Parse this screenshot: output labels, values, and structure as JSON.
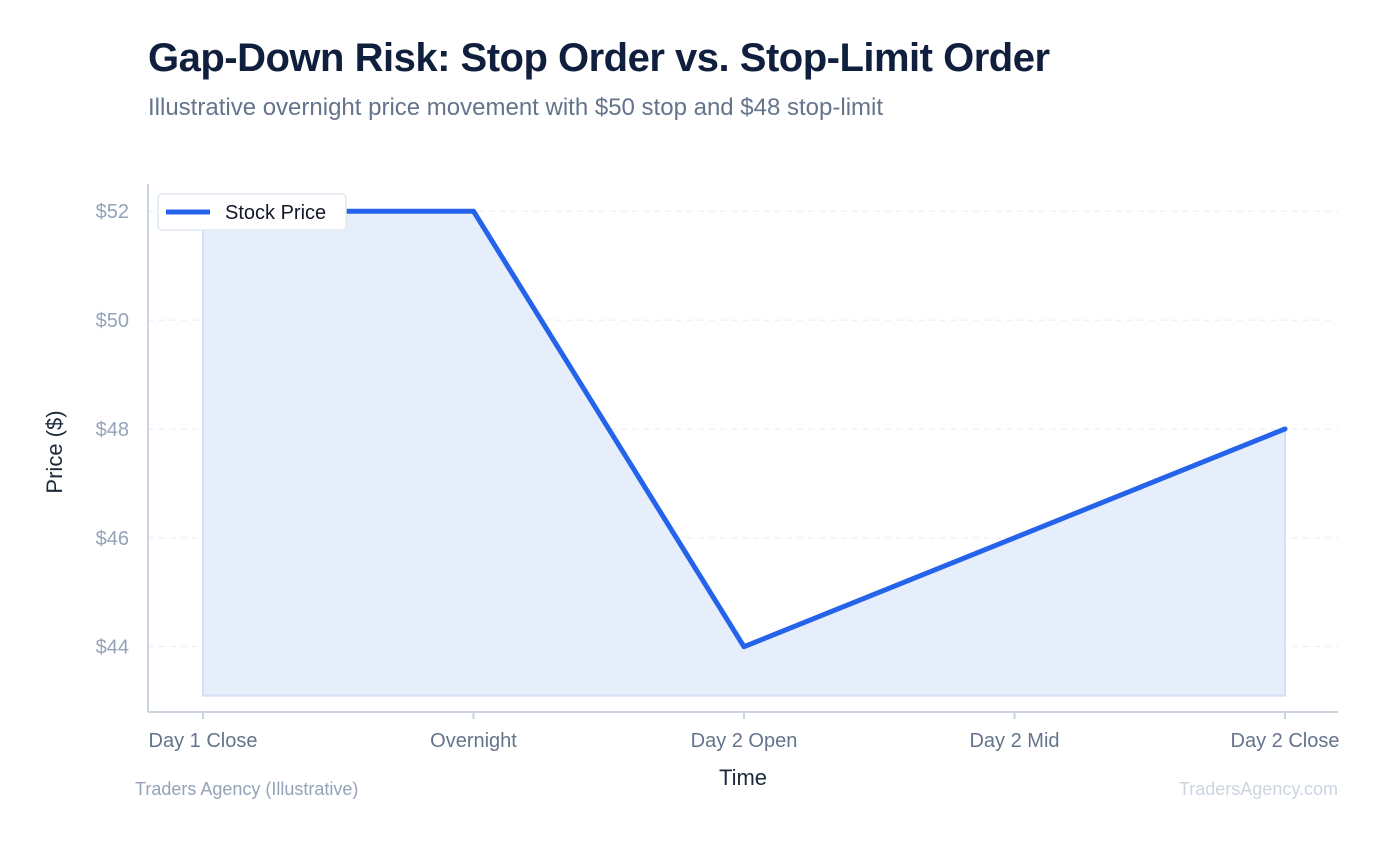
{
  "header": {
    "title": "Gap-Down Risk: Stop Order vs. Stop-Limit Order",
    "subtitle": "Illustrative overnight price movement with $50 stop and $48 stop-limit"
  },
  "footer": {
    "source": "Traders Agency (Illustrative)",
    "watermark": "TradersAgency.com"
  },
  "colors": {
    "line": "#2563eb",
    "fill": "#e6eefb",
    "fill_edge": "#d3e0f5",
    "axis": "#cbd5e1",
    "grid": "#e8edf3",
    "tick_label": "#94a3b8",
    "x_tick_label": "#64748b",
    "axis_title": "#1e293b"
  },
  "chart_data": {
    "type": "area",
    "title": "Gap-Down Risk: Stop Order vs. Stop-Limit Order",
    "subtitle": "Illustrative overnight price movement with $50 stop and $48 stop-limit",
    "xlabel": "Time",
    "ylabel": "Price ($)",
    "categories": [
      "Day 1 Close",
      "Overnight",
      "Day 2 Open",
      "Day 2 Mid",
      "Day 2 Close"
    ],
    "series": [
      {
        "name": "Stock Price",
        "values": [
          52,
          52,
          44,
          46,
          48
        ]
      }
    ],
    "yticks": [
      44,
      46,
      48,
      50,
      52
    ],
    "ytick_labels": [
      "$44",
      "$46",
      "$48",
      "$50",
      "$52"
    ],
    "ylim": [
      42.8,
      52.5
    ],
    "fill_baseline": 43.1,
    "grid": true,
    "grid_axis": "y",
    "legend": "top-left"
  }
}
